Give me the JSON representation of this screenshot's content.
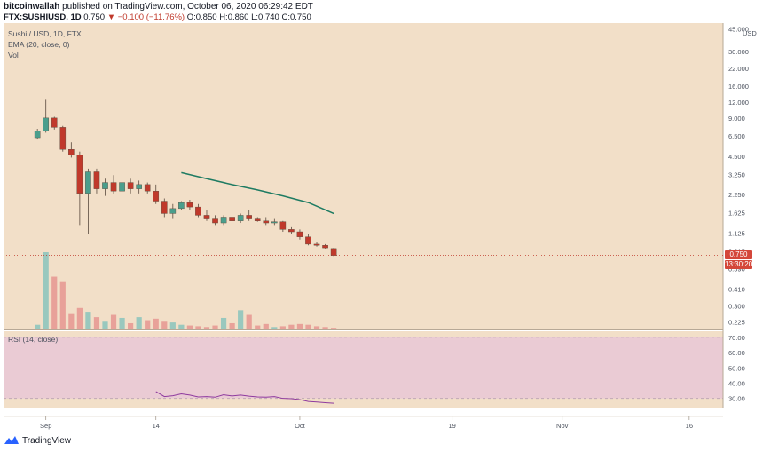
{
  "header": {
    "author": "bitcoinwallah",
    "published_text": "published on TradingView.com, October 06, 2020 06:29:42 EDT",
    "symbol": "FTX:SUSHIUSD, 1D",
    "last": "0.750",
    "change": "−0.100 (−11.76%)",
    "open": "O:0.850",
    "high": "H:0.860",
    "low": "L:0.740",
    "close": "C:0.750"
  },
  "legend": {
    "title": "Sushi / USD, 1D, FTX",
    "ema": "EMA (20, close, 0)",
    "vol": "Vol",
    "rsi": "RSI (14, close)"
  },
  "tags": {
    "price": "0.750",
    "countdown": "13:30:20"
  },
  "footer": {
    "brand": "TradingView"
  },
  "colors": {
    "background": "#f2dfc8",
    "up": "#4a9e8c",
    "down": "#c0392b",
    "ema": "#1e7b62",
    "vol_up": "#8fc5bc",
    "vol_down": "#e79a93",
    "rsi_band": "#e9c8d6",
    "rsi_line": "#8e3a9e"
  },
  "chart_data": [
    {
      "type": "candlestick",
      "scale": "log",
      "y_unit": "USD",
      "y_ticks": [
        "45.000",
        "30.000",
        "22.000",
        "16.000",
        "12.000",
        "9.000",
        "6.500",
        "4.500",
        "3.250",
        "2.250",
        "1.625",
        "1.125",
        "0.815",
        "0.590",
        "0.410",
        "0.300",
        "0.225"
      ],
      "x_ticks": [
        "Sep",
        "14",
        "Oct",
        "19",
        "Nov",
        "16"
      ],
      "x_tick_dates": [
        "2020-09-01",
        "2020-09-14",
        "2020-10-01",
        "2020-10-19",
        "2020-11-01",
        "2020-11-16"
      ],
      "x_range": [
        "2020-08-27",
        "2020-11-20"
      ],
      "candles": [
        {
          "date": "2020-08-31",
          "o": 6.3,
          "h": 7.4,
          "l": 6.1,
          "c": 7.1
        },
        {
          "date": "2020-09-01",
          "o": 7.1,
          "h": 12.5,
          "l": 6.9,
          "c": 9.0
        },
        {
          "date": "2020-09-02",
          "o": 9.0,
          "h": 9.2,
          "l": 7.3,
          "c": 7.6
        },
        {
          "date": "2020-09-03",
          "o": 7.6,
          "h": 7.8,
          "l": 4.9,
          "c": 5.1
        },
        {
          "date": "2020-09-04",
          "o": 5.1,
          "h": 5.8,
          "l": 4.4,
          "c": 4.6
        },
        {
          "date": "2020-09-05",
          "o": 4.6,
          "h": 4.9,
          "l": 1.3,
          "c": 2.3
        },
        {
          "date": "2020-09-06",
          "o": 2.3,
          "h": 3.6,
          "l": 1.1,
          "c": 3.4
        },
        {
          "date": "2020-09-07",
          "o": 3.4,
          "h": 3.6,
          "l": 2.3,
          "c": 2.5
        },
        {
          "date": "2020-09-08",
          "o": 2.5,
          "h": 3.0,
          "l": 2.2,
          "c": 2.8
        },
        {
          "date": "2020-09-09",
          "o": 2.8,
          "h": 3.2,
          "l": 2.3,
          "c": 2.4
        },
        {
          "date": "2020-09-10",
          "o": 2.4,
          "h": 3.0,
          "l": 2.2,
          "c": 2.8
        },
        {
          "date": "2020-09-11",
          "o": 2.8,
          "h": 3.0,
          "l": 2.3,
          "c": 2.5
        },
        {
          "date": "2020-09-12",
          "o": 2.5,
          "h": 2.9,
          "l": 2.3,
          "c": 2.7
        },
        {
          "date": "2020-09-13",
          "o": 2.7,
          "h": 2.8,
          "l": 2.3,
          "c": 2.4
        },
        {
          "date": "2020-09-14",
          "o": 2.4,
          "h": 2.7,
          "l": 1.9,
          "c": 2.0
        },
        {
          "date": "2020-09-15",
          "o": 2.0,
          "h": 2.1,
          "l": 1.5,
          "c": 1.6
        },
        {
          "date": "2020-09-16",
          "o": 1.6,
          "h": 1.9,
          "l": 1.45,
          "c": 1.75
        },
        {
          "date": "2020-09-17",
          "o": 1.75,
          "h": 2.0,
          "l": 1.7,
          "c": 1.95
        },
        {
          "date": "2020-09-18",
          "o": 1.95,
          "h": 2.05,
          "l": 1.7,
          "c": 1.8
        },
        {
          "date": "2020-09-19",
          "o": 1.8,
          "h": 1.9,
          "l": 1.5,
          "c": 1.55
        },
        {
          "date": "2020-09-20",
          "o": 1.55,
          "h": 1.7,
          "l": 1.4,
          "c": 1.45
        },
        {
          "date": "2020-09-21",
          "o": 1.45,
          "h": 1.55,
          "l": 1.3,
          "c": 1.35
        },
        {
          "date": "2020-09-22",
          "o": 1.35,
          "h": 1.55,
          "l": 1.3,
          "c": 1.5
        },
        {
          "date": "2020-09-23",
          "o": 1.5,
          "h": 1.6,
          "l": 1.35,
          "c": 1.4
        },
        {
          "date": "2020-09-24",
          "o": 1.4,
          "h": 1.6,
          "l": 1.35,
          "c": 1.55
        },
        {
          "date": "2020-09-25",
          "o": 1.55,
          "h": 1.7,
          "l": 1.4,
          "c": 1.45
        },
        {
          "date": "2020-09-26",
          "o": 1.45,
          "h": 1.5,
          "l": 1.38,
          "c": 1.4
        },
        {
          "date": "2020-09-27",
          "o": 1.4,
          "h": 1.5,
          "l": 1.3,
          "c": 1.35
        },
        {
          "date": "2020-09-28",
          "o": 1.35,
          "h": 1.45,
          "l": 1.3,
          "c": 1.38
        },
        {
          "date": "2020-09-29",
          "o": 1.38,
          "h": 1.4,
          "l": 1.15,
          "c": 1.2
        },
        {
          "date": "2020-09-30",
          "o": 1.2,
          "h": 1.25,
          "l": 1.1,
          "c": 1.15
        },
        {
          "date": "2020-10-01",
          "o": 1.15,
          "h": 1.2,
          "l": 1.0,
          "c": 1.05
        },
        {
          "date": "2020-10-02",
          "o": 1.05,
          "h": 1.1,
          "l": 0.9,
          "c": 0.92
        },
        {
          "date": "2020-10-03",
          "o": 0.92,
          "h": 0.95,
          "l": 0.88,
          "c": 0.9
        },
        {
          "date": "2020-10-04",
          "o": 0.9,
          "h": 0.92,
          "l": 0.85,
          "c": 0.86
        },
        {
          "date": "2020-10-05",
          "o": 0.85,
          "h": 0.86,
          "l": 0.74,
          "c": 0.75
        }
      ],
      "ema": [
        {
          "date": "2020-09-17",
          "v": 3.35
        },
        {
          "date": "2020-09-20",
          "v": 3.0
        },
        {
          "date": "2020-09-23",
          "v": 2.7
        },
        {
          "date": "2020-09-26",
          "v": 2.45
        },
        {
          "date": "2020-09-29",
          "v": 2.2
        },
        {
          "date": "2020-10-02",
          "v": 1.95
        },
        {
          "date": "2020-10-05",
          "v": 1.6
        }
      ],
      "volume": [
        0.05,
        1.0,
        0.68,
        0.62,
        0.19,
        0.27,
        0.22,
        0.15,
        0.09,
        0.18,
        0.14,
        0.07,
        0.15,
        0.11,
        0.13,
        0.09,
        0.08,
        0.05,
        0.04,
        0.03,
        0.02,
        0.04,
        0.14,
        0.07,
        0.24,
        0.18,
        0.04,
        0.06,
        0.02,
        0.03,
        0.05,
        0.06,
        0.05,
        0.03,
        0.02,
        0.01
      ]
    },
    {
      "type": "line",
      "title": "RSI (14, close)",
      "y_ticks": [
        "70.00",
        "60.00",
        "50.00",
        "40.00",
        "30.00"
      ],
      "band": [
        30,
        70
      ],
      "points": [
        {
          "date": "2020-09-14",
          "v": 34.5
        },
        {
          "date": "2020-09-15",
          "v": 31.2
        },
        {
          "date": "2020-09-16",
          "v": 31.8
        },
        {
          "date": "2020-09-17",
          "v": 33.0
        },
        {
          "date": "2020-09-18",
          "v": 32.2
        },
        {
          "date": "2020-09-19",
          "v": 31.0
        },
        {
          "date": "2020-09-20",
          "v": 31.2
        },
        {
          "date": "2020-09-21",
          "v": 30.8
        },
        {
          "date": "2020-09-22",
          "v": 32.4
        },
        {
          "date": "2020-09-23",
          "v": 31.6
        },
        {
          "date": "2020-09-24",
          "v": 32.2
        },
        {
          "date": "2020-09-25",
          "v": 31.5
        },
        {
          "date": "2020-09-26",
          "v": 31.0
        },
        {
          "date": "2020-09-27",
          "v": 30.8
        },
        {
          "date": "2020-09-28",
          "v": 31.2
        },
        {
          "date": "2020-09-29",
          "v": 30.0
        },
        {
          "date": "2020-09-30",
          "v": 29.8
        },
        {
          "date": "2020-10-01",
          "v": 29.2
        },
        {
          "date": "2020-10-02",
          "v": 28.0
        },
        {
          "date": "2020-10-03",
          "v": 27.6
        },
        {
          "date": "2020-10-04",
          "v": 27.2
        },
        {
          "date": "2020-10-05",
          "v": 26.8
        }
      ]
    }
  ]
}
